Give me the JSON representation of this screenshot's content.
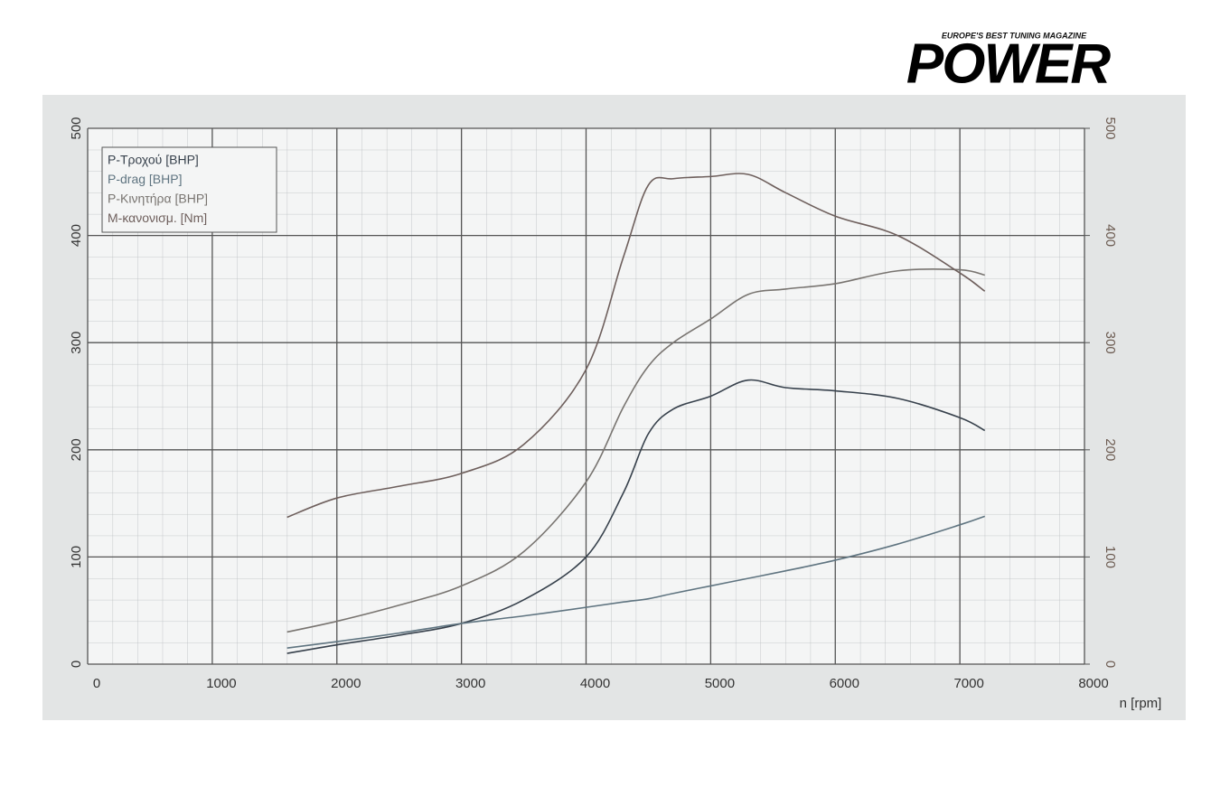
{
  "logo": {
    "tagline": "EUROPE'S BEST TUNING MAGAZINE",
    "name": "POWER"
  },
  "chart_data": {
    "type": "line",
    "x_label": "n [rpm]",
    "x": [
      1600,
      2000,
      2500,
      3000,
      3500,
      4000,
      4300,
      4500,
      4700,
      5000,
      5300,
      5600,
      6000,
      6500,
      7000,
      7200
    ],
    "series": [
      {
        "name": "P-Τροχού [BHP]",
        "color": "#37414c",
        "values": [
          10,
          18,
          27,
          38,
          60,
          100,
          160,
          215,
          238,
          250,
          265,
          258,
          255,
          248,
          230,
          218
        ]
      },
      {
        "name": "P-drag [BHP]",
        "color": "#5f7480",
        "values": [
          15,
          21,
          29,
          38,
          45,
          53,
          58,
          61,
          66,
          73,
          80,
          87,
          97,
          112,
          130,
          138
        ]
      },
      {
        "name": "P-Κινητήρα [BHP]",
        "color": "#787470",
        "values": [
          30,
          40,
          55,
          73,
          105,
          170,
          240,
          278,
          300,
          322,
          345,
          350,
          355,
          367,
          368,
          363
        ]
      },
      {
        "name": "M-κανονισμ. [Nm]",
        "color": "#6e5f5c",
        "values": [
          137,
          155,
          166,
          178,
          205,
          275,
          380,
          447,
          453,
          455,
          457,
          440,
          418,
          400,
          365,
          348
        ]
      }
    ],
    "xlim": [
      0,
      8000
    ],
    "xticks": [
      0,
      1000,
      2000,
      3000,
      4000,
      5000,
      6000,
      7000,
      8000
    ],
    "ylim": [
      0,
      500
    ],
    "yticks": [
      0,
      100,
      200,
      300,
      400,
      500
    ],
    "y2lim": [
      0,
      500
    ],
    "y2ticks": [
      0,
      100,
      200,
      300,
      400,
      500
    ],
    "grid": true,
    "legend": "upper left"
  }
}
